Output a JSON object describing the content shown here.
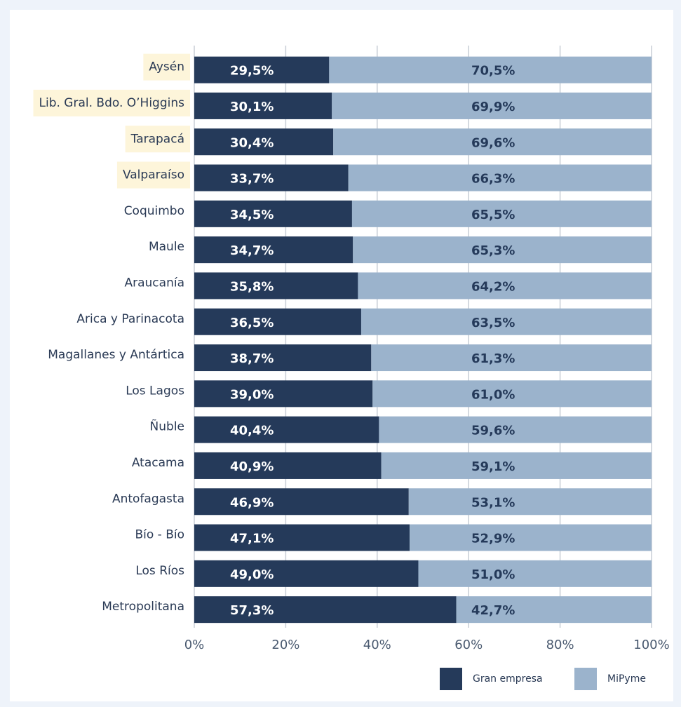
{
  "chart_data": {
    "type": "stacked_barh",
    "categories": [
      "Aysén",
      "Lib. Gral. Bdo. O’Higgins",
      "Tarapacá",
      "Valparaíso",
      "Coquimbo",
      "Maule",
      "Araucanía",
      "Arica y Parinacota",
      "Magallanes y Antártica",
      "Los Lagos",
      "Ñuble",
      "Atacama",
      "Antofagasta",
      "Bío - Bío",
      "Los Ríos",
      "Metropolitana"
    ],
    "series": [
      {
        "name": "Gran empresa",
        "color": "#253a5a",
        "values": [
          29.5,
          30.1,
          30.4,
          33.7,
          34.5,
          34.7,
          35.8,
          36.5,
          38.7,
          39.0,
          40.4,
          40.9,
          46.9,
          47.1,
          49.0,
          57.3
        ],
        "value_labels": [
          "29,5%",
          "30,1%",
          "30,4%",
          "33,7%",
          "34,5%",
          "34,7%",
          "35,8%",
          "36,5%",
          "38,7%",
          "39,0%",
          "40,4%",
          "40,9%",
          "46,9%",
          "47,1%",
          "49,0%",
          "57,3%"
        ]
      },
      {
        "name": "MiPyme",
        "color": "#9bb3cc",
        "values": [
          70.5,
          69.9,
          69.6,
          66.3,
          65.5,
          65.3,
          64.2,
          63.5,
          61.3,
          61.0,
          59.6,
          59.1,
          53.1,
          52.9,
          51.0,
          42.7
        ],
        "value_labels": [
          "70,5%",
          "69,9%",
          "69,6%",
          "66,3%",
          "65,5%",
          "65,3%",
          "64,2%",
          "63,5%",
          "61,3%",
          "61,0%",
          "59,6%",
          "59,1%",
          "53,1%",
          "52,9%",
          "51,0%",
          "42,7%"
        ]
      }
    ],
    "xlim": [
      0,
      100
    ],
    "xticks": [
      {
        "value": 0,
        "label": "0%"
      },
      {
        "value": 20,
        "label": "20%"
      },
      {
        "value": 40,
        "label": "40%"
      },
      {
        "value": 60,
        "label": "60%"
      },
      {
        "value": 80,
        "label": "80%"
      },
      {
        "value": 100,
        "label": "100%"
      }
    ],
    "grid": true,
    "legend": "bottom-right",
    "highlight": {
      "color": "#fdf5da",
      "categories": [
        0,
        1,
        2,
        3
      ]
    }
  }
}
